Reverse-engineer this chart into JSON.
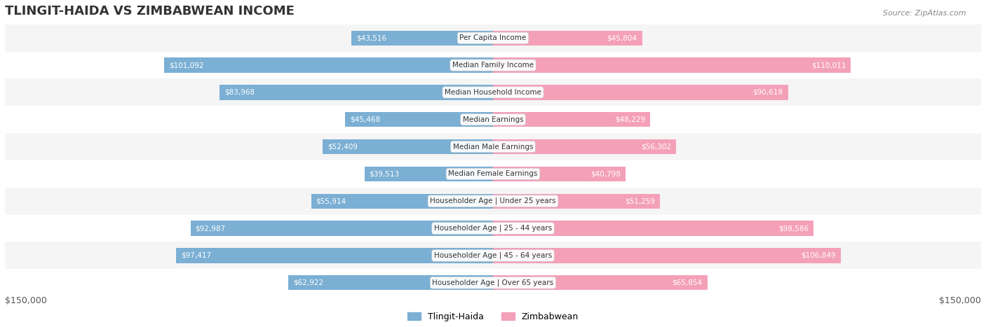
{
  "title": "TLINGIT-HAIDA VS ZIMBABWEAN INCOME",
  "source": "Source: ZipAtlas.com",
  "categories": [
    "Per Capita Income",
    "Median Family Income",
    "Median Household Income",
    "Median Earnings",
    "Median Male Earnings",
    "Median Female Earnings",
    "Householder Age | Under 25 years",
    "Householder Age | 25 - 44 years",
    "Householder Age | 45 - 64 years",
    "Householder Age | Over 65 years"
  ],
  "tlingit_values": [
    43516,
    101092,
    83968,
    45468,
    52409,
    39513,
    55914,
    92987,
    97417,
    62922
  ],
  "zimbabwean_values": [
    45804,
    110011,
    90618,
    48229,
    56302,
    40798,
    51259,
    98586,
    106849,
    65854
  ],
  "tlingit_labels": [
    "$43,516",
    "$101,092",
    "$83,968",
    "$45,468",
    "$52,409",
    "$39,513",
    "$55,914",
    "$92,987",
    "$97,417",
    "$62,922"
  ],
  "zimbabwean_labels": [
    "$45,804",
    "$110,011",
    "$90,618",
    "$48,229",
    "$56,302",
    "$40,798",
    "$51,259",
    "$98,586",
    "$106,849",
    "$65,854"
  ],
  "tlingit_color": "#7bafd4",
  "tlingit_color_dark": "#5a9fc4",
  "zimbabwean_color": "#f4a0b8",
  "zimbabwean_color_dark": "#e8789a",
  "max_value": 150000,
  "bar_height": 0.55,
  "row_bg_color_odd": "#f5f5f5",
  "row_bg_color_even": "#ffffff",
  "label_color_inside": "#ffffff",
  "label_color_outside": "#555555",
  "legend_tlingit": "Tlingit-Haida",
  "legend_zimbabwean": "Zimbabwean",
  "ylabel_left": "$150,000",
  "ylabel_right": "$150,000"
}
